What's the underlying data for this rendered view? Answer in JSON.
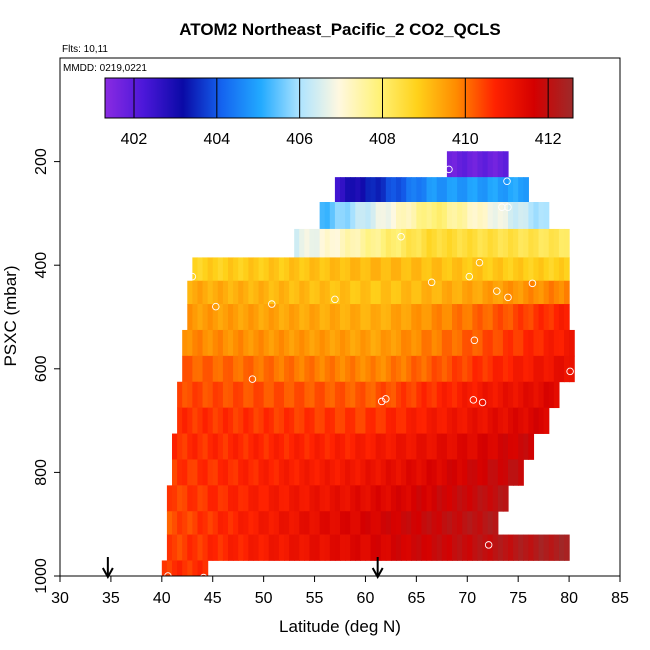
{
  "chart_data": {
    "type": "heatmap",
    "title": "ATOM2 Northeast_Pacific_2 CO2_QCLS",
    "flights_label": "Flts: 10,11",
    "mmdd_label": "MMDD: 0219,0221",
    "xlabel": "Latitude (deg N)",
    "ylabel": "PSXC (mbar)",
    "xlim": [
      30,
      85
    ],
    "ylim": [
      1000,
      0
    ],
    "x_ticks": [
      "30",
      "35",
      "40",
      "45",
      "50",
      "55",
      "60",
      "65",
      "70",
      "75",
      "80",
      "85"
    ],
    "y_ticks": [
      "200",
      "400",
      "600",
      "800",
      "1000"
    ],
    "colorbar": {
      "range": [
        401.3,
        412.6
      ],
      "tick_labels": [
        "402",
        "404",
        "406",
        "408",
        "410",
        "412"
      ],
      "colors": [
        "#8a2be2",
        "#4b17d9",
        "#0a0aa6",
        "#1464f0",
        "#22aaff",
        "#aee4ff",
        "#fff8e0",
        "#fff27a",
        "#ffd21a",
        "#ff8c00",
        "#ff2200",
        "#d40000",
        "#9e2a2a"
      ]
    },
    "grid": false,
    "bands": [
      {
        "p": [
          180,
          230
        ],
        "lat": [
          68,
          74
        ],
        "v": [
          401.8,
          401.8,
          401.8
        ]
      },
      {
        "p": [
          230,
          278
        ],
        "lat": [
          57,
          76
        ],
        "v": [
          402.5,
          404.8,
          405.0
        ]
      },
      {
        "p": [
          278,
          330
        ],
        "lat": [
          55.5,
          78
        ],
        "v": [
          405.2,
          408.0,
          405.8
        ]
      },
      {
        "p": [
          330,
          385
        ],
        "lat": [
          53,
          80
        ],
        "v": [
          406.5,
          408.6,
          408.2
        ]
      },
      {
        "p": [
          385,
          430
        ],
        "lat": [
          43,
          80
        ],
        "v": [
          408.8,
          409.2,
          408.8
        ]
      },
      {
        "p": [
          430,
          475
        ],
        "lat": [
          42.5,
          80
        ],
        "v": [
          409.4,
          409.0,
          409.9
        ]
      },
      {
        "p": [
          475,
          525
        ],
        "lat": [
          42.5,
          80
        ],
        "v": [
          409.6,
          409.3,
          410.8
        ]
      },
      {
        "p": [
          525,
          575
        ],
        "lat": [
          42,
          80.5
        ],
        "v": [
          409.8,
          409.5,
          411.0
        ]
      },
      {
        "p": [
          575,
          625
        ],
        "lat": [
          42,
          80.5
        ],
        "v": [
          410.2,
          409.8,
          411.3
        ]
      },
      {
        "p": [
          625,
          675
        ],
        "lat": [
          41.5,
          79
        ],
        "v": [
          410.4,
          410.2,
          411.5
        ]
      },
      {
        "p": [
          675,
          725
        ],
        "lat": [
          41.5,
          78
        ],
        "v": [
          410.6,
          410.5,
          411.6
        ]
      },
      {
        "p": [
          725,
          775
        ],
        "lat": [
          41,
          76.5
        ],
        "v": [
          410.6,
          410.8,
          411.8
        ]
      },
      {
        "p": [
          775,
          825
        ],
        "lat": [
          41,
          75.5
        ],
        "v": [
          410.5,
          411.0,
          412.0
        ]
      },
      {
        "p": [
          825,
          875
        ],
        "lat": [
          40.5,
          74
        ],
        "v": [
          410.4,
          411.2,
          412.1
        ]
      },
      {
        "p": [
          875,
          920
        ],
        "lat": [
          40.5,
          73
        ],
        "v": [
          410.3,
          411.4,
          412.2
        ]
      },
      {
        "p": [
          920,
          970
        ],
        "lat": [
          40.5,
          80
        ],
        "v": [
          410.4,
          411.5,
          412.4
        ]
      },
      {
        "p": [
          970,
          1000
        ],
        "lat": [
          40,
          44.5
        ],
        "v": [
          410.6,
          410.6,
          410.6
        ]
      }
    ],
    "sample_points": [
      [
        68.2,
        215
      ],
      [
        73.9,
        238
      ],
      [
        73.4,
        288
      ],
      [
        74.0,
        288
      ],
      [
        63.5,
        345
      ],
      [
        71.2,
        395
      ],
      [
        70.2,
        422
      ],
      [
        66.5,
        433
      ],
      [
        76.4,
        435
      ],
      [
        72.9,
        450
      ],
      [
        74.0,
        462
      ],
      [
        43.0,
        422
      ],
      [
        57.0,
        466
      ],
      [
        50.8,
        475
      ],
      [
        45.3,
        480
      ],
      [
        70.7,
        545
      ],
      [
        80.1,
        605
      ],
      [
        48.9,
        620
      ],
      [
        62.0,
        658
      ],
      [
        61.6,
        663
      ],
      [
        70.6,
        660
      ],
      [
        71.5,
        665
      ],
      [
        72.1,
        940
      ],
      [
        40.6,
        1000
      ],
      [
        44.1,
        1003
      ]
    ],
    "arrows_lat": [
      34.7,
      61.2
    ]
  }
}
